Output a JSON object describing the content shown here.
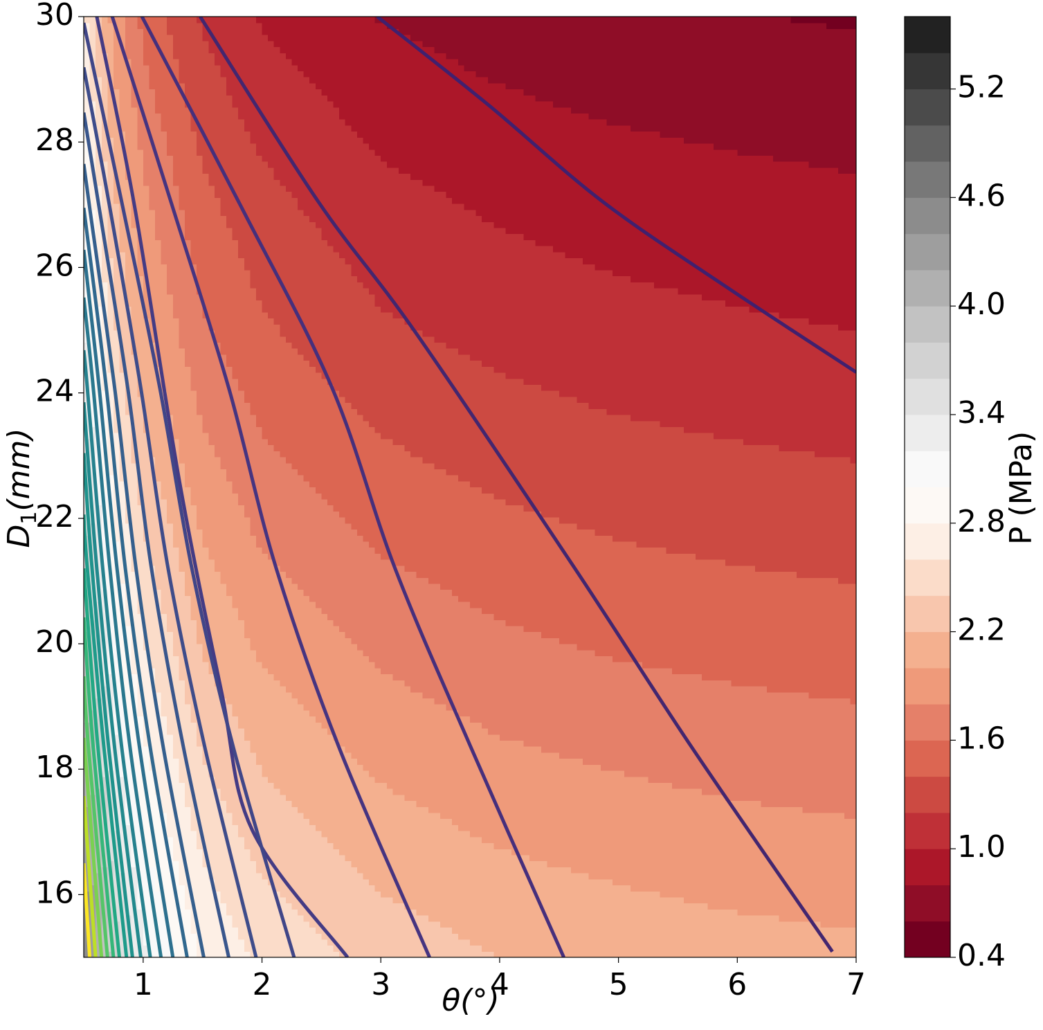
{
  "chart_data": {
    "type": "contourf",
    "xlabel": "θ(°)",
    "ylabel_parts": [
      "D",
      "1",
      "(mm)"
    ],
    "xlim": [
      0.5,
      7
    ],
    "ylim": [
      15,
      30
    ],
    "xticks": [
      1,
      2,
      3,
      4,
      5,
      6,
      7
    ],
    "yticks": [
      16,
      18,
      20,
      22,
      24,
      26,
      28,
      30
    ],
    "field": {
      "x": [
        0.5,
        0.75,
        1,
        1.5,
        2,
        3,
        4,
        5,
        6,
        7
      ],
      "y": [
        15,
        17.5,
        20,
        22.5,
        25,
        27.5,
        30
      ],
      "z": [
        [
          4.65,
          3.72,
          3.25,
          2.78,
          2.55,
          2.32,
          2.2,
          2.13,
          2.08,
          2.05
        ],
        [
          4.28,
          3.38,
          2.93,
          2.48,
          2.25,
          2.03,
          1.91,
          1.85,
          1.8,
          1.77
        ],
        [
          3.91,
          3.05,
          2.61,
          2.18,
          1.96,
          1.75,
          1.64,
          1.57,
          1.53,
          1.5
        ],
        [
          3.58,
          2.74,
          2.32,
          1.9,
          1.69,
          1.48,
          1.38,
          1.31,
          1.27,
          1.24
        ],
        [
          3.25,
          2.44,
          2.04,
          1.63,
          1.43,
          1.23,
          1.13,
          1.07,
          1.03,
          1.0
        ],
        [
          2.97,
          2.19,
          1.8,
          1.41,
          1.22,
          1.02,
          0.93,
          0.87,
          0.83,
          0.8
        ],
        [
          2.66,
          1.91,
          1.54,
          1.17,
          0.98,
          0.79,
          0.7,
          0.64,
          0.61,
          0.58
        ]
      ]
    },
    "colorbar": {
      "label": "P (MPa)",
      "lim": [
        0.4,
        5.6
      ],
      "ticks": [
        0.4,
        1.0,
        1.6,
        2.2,
        2.8,
        3.4,
        4.0,
        4.6,
        5.2
      ],
      "colors": [
        "#730020",
        "#8f0d27",
        "#ac1729",
        "#bf3037",
        "#cc4a42",
        "#dc6652",
        "#e58069",
        "#ef9a7a",
        "#f4b08f",
        "#f8c6ad",
        "#fbdcc9",
        "#fdefe5",
        "#fdf9f5",
        "#f9f9f9",
        "#ededed",
        "#e0e0e0",
        "#d2d2d2",
        "#c2c2c2",
        "#b0b0b0",
        "#9e9e9e",
        "#8c8c8c",
        "#787878",
        "#626262",
        "#4b4b4b",
        "#363636",
        "#222222"
      ]
    },
    "contour_lines": [
      {
        "color": "#40206e",
        "x": [
          2.97,
          3.9,
          4.86,
          5.9,
          7
        ],
        "y": [
          30,
          28.6,
          27.06,
          25.7,
          24.33
        ]
      },
      {
        "color": "#43266f",
        "x": [
          1.48,
          2.47,
          3.29,
          4.63,
          5.62,
          6.8
        ],
        "y": [
          30,
          27.06,
          24.97,
          21.21,
          18.34,
          15.09
        ]
      },
      {
        "color": "#462f7c",
        "x": [
          0.99,
          1.83,
          2.59,
          3.12,
          3.76,
          4.54
        ],
        "y": [
          30,
          26.95,
          24.08,
          21.2,
          18.34,
          15
        ]
      },
      {
        "color": "#463480",
        "x": [
          0.74,
          1.25,
          1.72,
          2.12,
          2.65,
          3.41
        ],
        "y": [
          30,
          26.95,
          24.08,
          21.2,
          18.34,
          15
        ]
      },
      {
        "color": "#443b84",
        "x": [
          0.61,
          0.93,
          1.31,
          1.66,
          1.92,
          2.72
        ],
        "y": [
          30,
          26.95,
          22.54,
          19.23,
          17.02,
          15
        ]
      },
      {
        "color": "#404688",
        "x": [
          0.5,
          0.83,
          1.14,
          1.41,
          1.76,
          2.27
        ],
        "y": [
          29.9,
          26.95,
          24.08,
          21.2,
          18.34,
          15
        ]
      },
      {
        "color": "#3e4c8a",
        "x": [
          0.5,
          0.72,
          0.98,
          1.21,
          1.52,
          1.95
        ],
        "y": [
          29.19,
          26.95,
          24.08,
          21.2,
          18.34,
          15
        ]
      },
      {
        "color": "#39568c",
        "x": [
          0.5,
          0.63,
          0.87,
          1.07,
          1.34,
          1.72
        ],
        "y": [
          28.47,
          26.95,
          24.08,
          21.2,
          18.34,
          15
        ]
      },
      {
        "color": "#355f8d",
        "x": [
          0.5,
          0.55,
          0.76,
          0.94,
          1.17,
          1.51
        ],
        "y": [
          27.65,
          26.95,
          24.08,
          21.2,
          18.34,
          15
        ]
      },
      {
        "color": "#31688e",
        "x": [
          0.5,
          0.69,
          0.85,
          1.06,
          1.37
        ],
        "y": [
          26.95,
          24.08,
          21.2,
          18.34,
          15
        ]
      },
      {
        "color": "#2d708e",
        "x": [
          0.5,
          0.63,
          0.78,
          0.97,
          1.25
        ],
        "y": [
          26.28,
          24.08,
          21.2,
          18.34,
          15
        ]
      },
      {
        "color": "#2a788e",
        "x": [
          0.5,
          0.58,
          0.72,
          0.89,
          1.15
        ],
        "y": [
          25.52,
          24.08,
          21.2,
          18.34,
          15
        ]
      },
      {
        "color": "#26818e",
        "x": [
          0.5,
          0.53,
          0.66,
          0.82,
          1.06
        ],
        "y": [
          24.68,
          24.08,
          21.2,
          18.34,
          15
        ]
      },
      {
        "color": "#22898d",
        "x": [
          0.5,
          0.61,
          0.76,
          0.98
        ],
        "y": [
          23.85,
          21.2,
          18.34,
          15
        ]
      },
      {
        "color": "#1f928c",
        "x": [
          0.5,
          0.57,
          0.71,
          0.91
        ],
        "y": [
          23.04,
          21.2,
          18.34,
          15
        ]
      },
      {
        "color": "#1e9b8a",
        "x": [
          0.5,
          0.53,
          0.67,
          0.86
        ],
        "y": [
          22.06,
          21.2,
          18.34,
          15
        ]
      },
      {
        "color": "#22a884",
        "x": [
          0.5,
          0.62,
          0.8
        ],
        "y": [
          21.2,
          18.34,
          15
        ]
      },
      {
        "color": "#35b779",
        "x": [
          0.5,
          0.58,
          0.75
        ],
        "y": [
          20.42,
          18.34,
          15
        ]
      },
      {
        "color": "#54c568",
        "x": [
          0.5,
          0.54,
          0.7
        ],
        "y": [
          19.48,
          18.34,
          15
        ]
      },
      {
        "color": "#7ad151",
        "x": [
          0.5,
          0.65
        ],
        "y": [
          18.5,
          15
        ]
      },
      {
        "color": "#bddf26",
        "x": [
          0.5,
          0.6
        ],
        "y": [
          17.57,
          15
        ]
      },
      {
        "color": "#fde725",
        "x": [
          0.5,
          0.55
        ],
        "y": [
          16.5,
          15
        ]
      }
    ]
  }
}
